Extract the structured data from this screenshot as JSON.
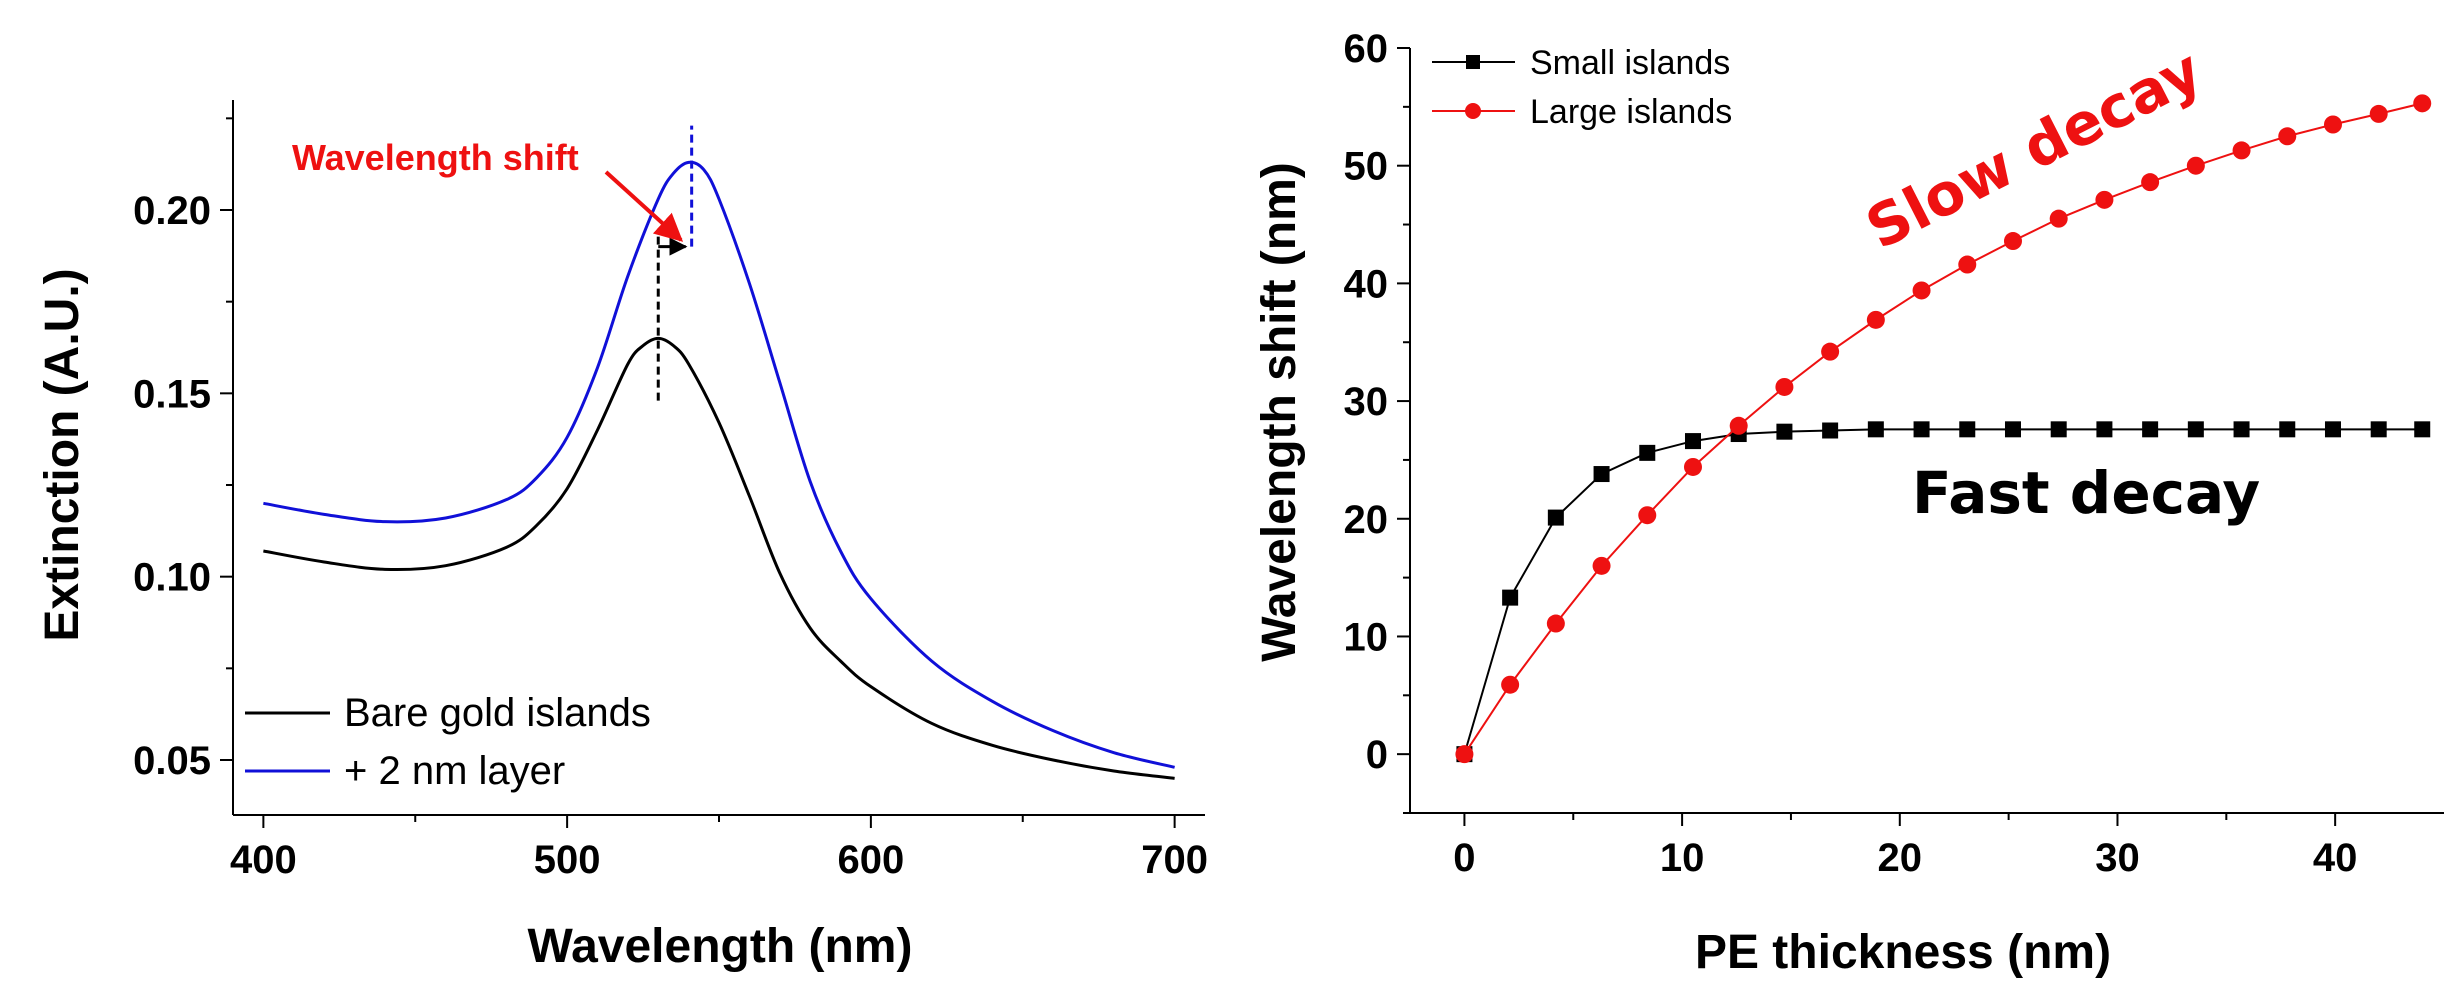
{
  "colors": {
    "black": "#000000",
    "blue": "#1010d8",
    "red": "#ee1111",
    "axis": "#000000"
  },
  "chart_data": [
    {
      "type": "line",
      "xlabel": "Wavelength (nm)",
      "ylabel": "Extinction (A.U.)",
      "xlim": [
        390,
        710
      ],
      "ylim": [
        0.035,
        0.23
      ],
      "xticks": [
        400,
        500,
        600,
        700
      ],
      "xtick_labels": [
        "400",
        "500",
        "600",
        "700"
      ],
      "yticks": [
        0.05,
        0.1,
        0.15,
        0.2
      ],
      "ytick_labels": [
        "0.05",
        "0.10",
        "0.15",
        "0.20"
      ],
      "legend_position": "bottom-left",
      "series": [
        {
          "name": "Bare gold islands",
          "color": "#000000",
          "x": [
            400,
            420,
            440,
            460,
            480,
            490,
            500,
            510,
            520,
            525,
            530,
            535,
            540,
            550,
            560,
            570,
            580,
            590,
            600,
            620,
            640,
            660,
            680,
            700
          ],
          "y": [
            0.107,
            0.104,
            0.102,
            0.103,
            0.108,
            0.114,
            0.124,
            0.14,
            0.158,
            0.163,
            0.165,
            0.163,
            0.158,
            0.142,
            0.122,
            0.101,
            0.086,
            0.077,
            0.07,
            0.06,
            0.054,
            0.05,
            0.047,
            0.045
          ]
        },
        {
          "name": "+ 2 nm layer",
          "color": "#1010d8",
          "x": [
            400,
            420,
            440,
            460,
            480,
            490,
            500,
            510,
            520,
            530,
            535,
            540,
            545,
            550,
            560,
            570,
            580,
            590,
            600,
            620,
            640,
            660,
            680,
            700
          ],
          "y": [
            0.12,
            0.117,
            0.115,
            0.116,
            0.121,
            0.127,
            0.138,
            0.157,
            0.182,
            0.203,
            0.21,
            0.213,
            0.211,
            0.203,
            0.18,
            0.153,
            0.126,
            0.107,
            0.094,
            0.077,
            0.066,
            0.058,
            0.052,
            0.048
          ]
        }
      ],
      "annotations": {
        "wavelength_shift_label": "Wavelength shift",
        "peak_black_x": 530,
        "peak_blue_x": 541
      }
    },
    {
      "type": "line",
      "xlabel": "PE thickness (nm)",
      "ylabel": "Wavelength shift (nm)",
      "xlim": [
        -2.5,
        45
      ],
      "ylim": [
        -5,
        60
      ],
      "xticks": [
        0,
        10,
        20,
        30,
        40
      ],
      "xtick_labels": [
        "0",
        "10",
        "20",
        "30",
        "40"
      ],
      "yticks": [
        0,
        10,
        20,
        30,
        40,
        50,
        60
      ],
      "ytick_labels": [
        "0",
        "10",
        "20",
        "30",
        "40",
        "50",
        "60"
      ],
      "legend_position": "top-left",
      "series": [
        {
          "name": "Small islands",
          "color": "#000000",
          "marker": "square",
          "x": [
            0,
            2.1,
            4.2,
            6.3,
            8.4,
            10.5,
            12.6,
            14.7,
            16.8,
            18.9,
            21,
            23.1,
            25.2,
            27.3,
            29.4,
            31.5,
            33.6,
            35.7,
            37.8,
            39.9,
            42,
            44
          ],
          "y": [
            0,
            13.3,
            20.1,
            23.8,
            25.6,
            26.6,
            27.2,
            27.4,
            27.5,
            27.6,
            27.6,
            27.6,
            27.6,
            27.6,
            27.6,
            27.6,
            27.6,
            27.6,
            27.6,
            27.6,
            27.6,
            27.6
          ]
        },
        {
          "name": "Large islands",
          "color": "#ee1111",
          "marker": "circle",
          "x": [
            0,
            2.1,
            4.2,
            6.3,
            8.4,
            10.5,
            12.6,
            14.7,
            16.8,
            18.9,
            21,
            23.1,
            25.2,
            27.3,
            29.4,
            31.5,
            33.6,
            35.7,
            37.8,
            39.9,
            42,
            44
          ],
          "y": [
            0,
            5.9,
            11.1,
            16.0,
            20.3,
            24.4,
            27.9,
            31.2,
            34.2,
            36.9,
            39.4,
            41.6,
            43.6,
            45.5,
            47.1,
            48.6,
            50.0,
            51.3,
            52.5,
            53.5,
            54.4,
            55.3
          ]
        }
      ],
      "annotations": {
        "slow_decay": "Slow decay",
        "fast_decay": "Fast decay"
      }
    }
  ]
}
